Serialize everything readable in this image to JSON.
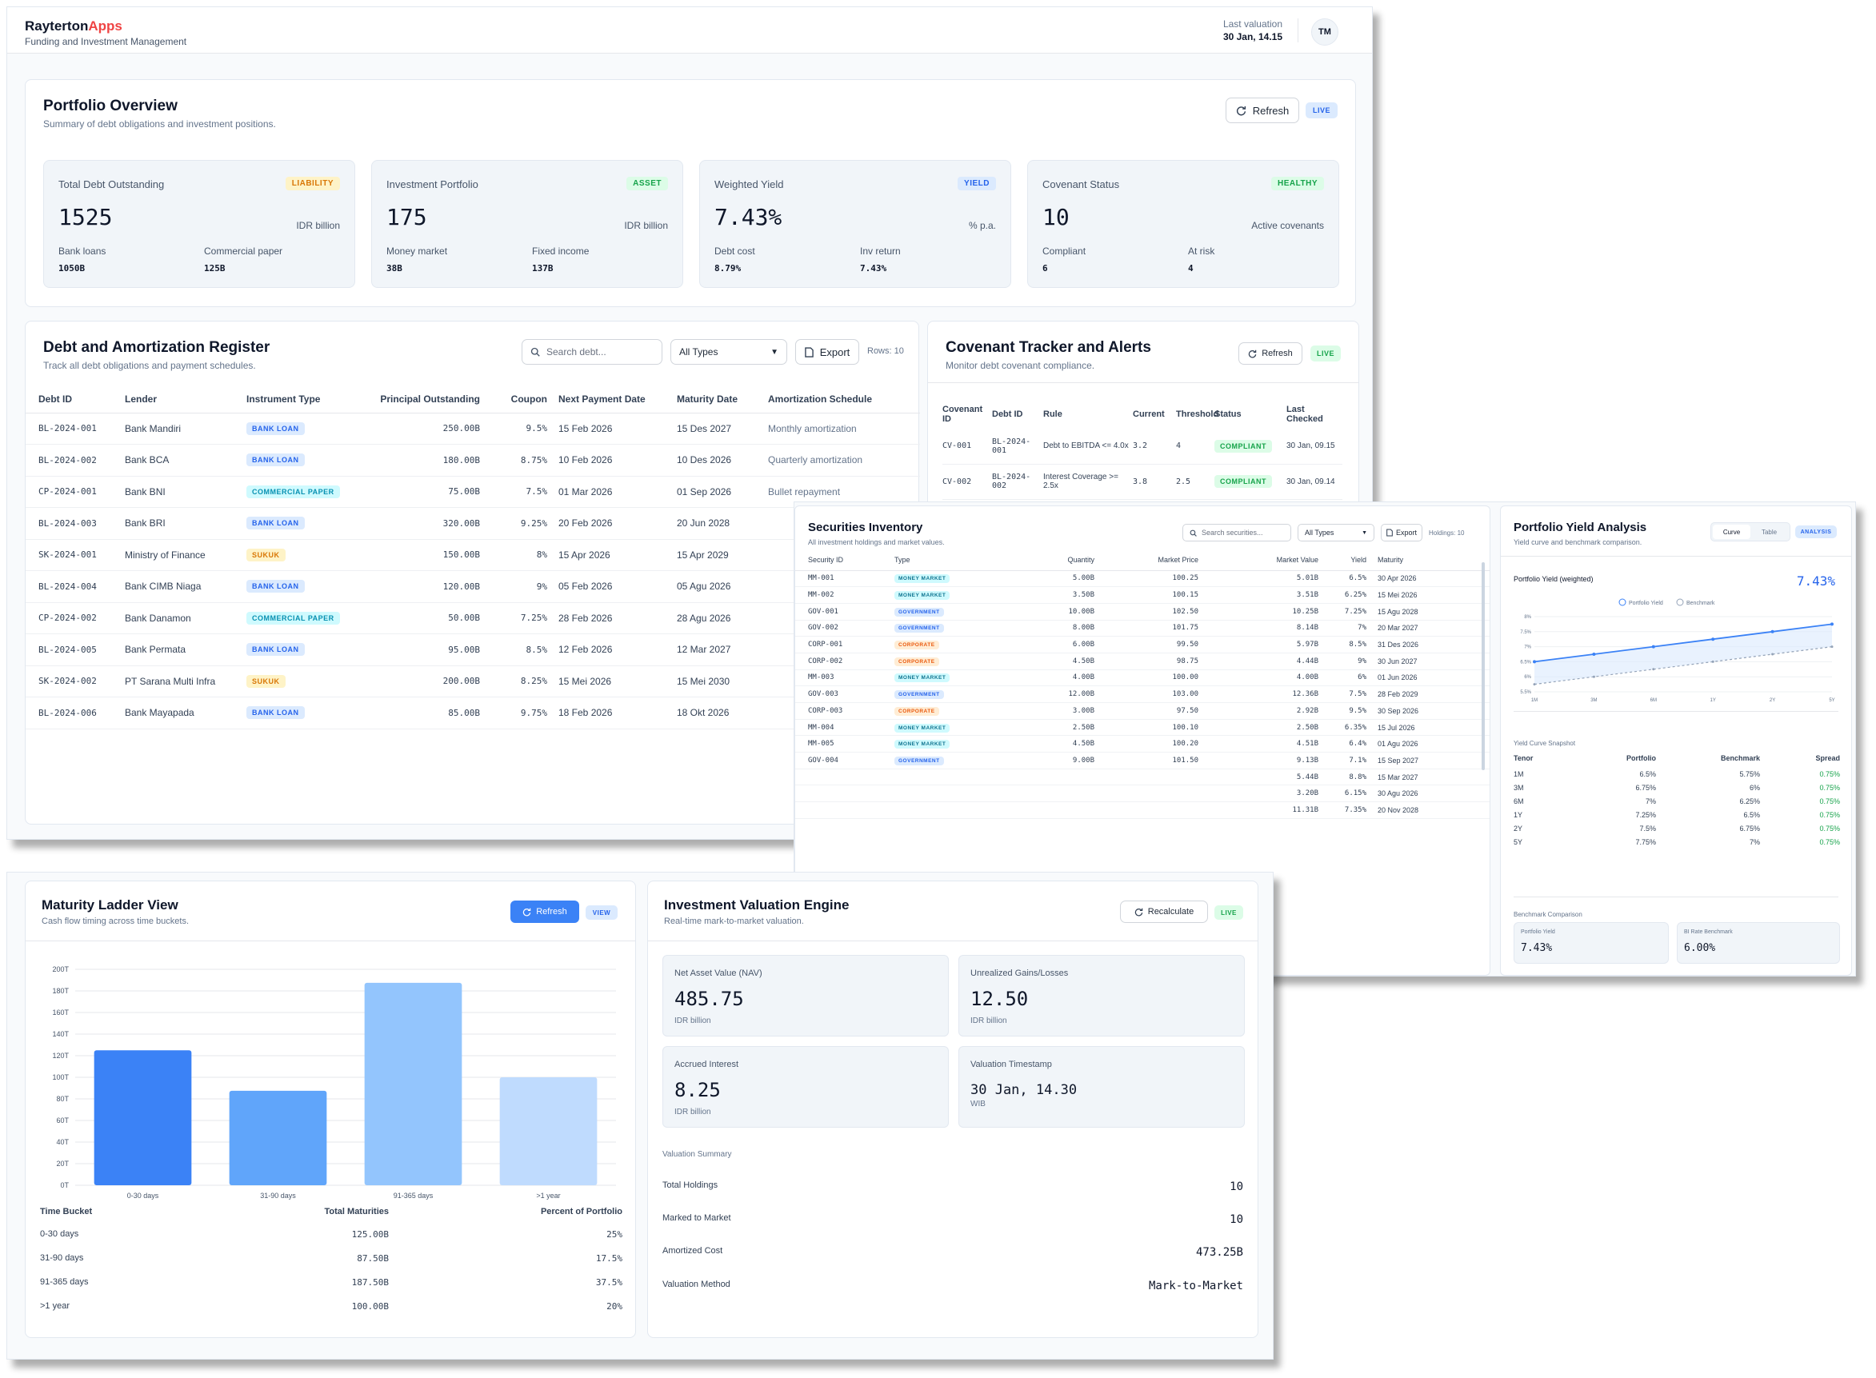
{
  "app": {
    "brand_main": "Rayterton",
    "brand_accent": "Apps",
    "tagline": "Funding and Investment Management",
    "last_valuation_label": "Last valuation",
    "last_valuation_value": "30 Jan, 14.15",
    "avatar": "TM",
    "accent_color": "#ef4444"
  },
  "overview": {
    "title": "Portfolio Overview",
    "subtitle": "Summary of debt obligations and investment positions.",
    "refresh_label": "Refresh",
    "live_label": "LIVE",
    "cards": [
      {
        "label": "Total Debt Outstanding",
        "tag": "LIABILITY",
        "value": "1525",
        "unit": "IDR billion",
        "s1_label": "Bank loans",
        "s1_value": "1050B",
        "s2_label": "Commercial paper",
        "s2_value": "125B"
      },
      {
        "label": "Investment Portfolio",
        "tag": "ASSET",
        "value": "175",
        "unit": "IDR billion",
        "s1_label": "Money market",
        "s1_value": "38B",
        "s2_label": "Fixed income",
        "s2_value": "137B"
      },
      {
        "label": "Weighted Yield",
        "tag": "YIELD",
        "value": "7.43%",
        "unit": "% p.a.",
        "s1_label": "Debt cost",
        "s1_value": "8.79%",
        "s2_label": "Inv return",
        "s2_value": "7.43%"
      },
      {
        "label": "Covenant Status",
        "tag": "HEALTHY",
        "value": "10",
        "unit": "Active covenants",
        "s1_label": "Compliant",
        "s1_value": "6",
        "s2_label": "At risk",
        "s2_value": "4"
      }
    ]
  },
  "debt": {
    "title": "Debt and Amortization Register",
    "subtitle": "Track all debt obligations and payment schedules.",
    "search_placeholder": "Search debt...",
    "filter_value": "All Types",
    "export_label": "Export",
    "rows_label": "Rows: 10",
    "headers": [
      "Debt ID",
      "Lender",
      "Instrument Type",
      "Principal Outstanding",
      "Coupon",
      "Next Payment Date",
      "Maturity Date",
      "Amortization Schedule"
    ],
    "rows": [
      {
        "id": "BL-2024-001",
        "lender": "Bank Mandiri",
        "type": "BANK LOAN",
        "principal": "250.00B",
        "coupon": "9.5%",
        "next": "15 Feb 2026",
        "maturity": "15 Des 2027",
        "schedule": "Monthly amortization"
      },
      {
        "id": "BL-2024-002",
        "lender": "Bank BCA",
        "type": "BANK LOAN",
        "principal": "180.00B",
        "coupon": "8.75%",
        "next": "10 Feb 2026",
        "maturity": "10 Des 2026",
        "schedule": "Quarterly amortization"
      },
      {
        "id": "CP-2024-001",
        "lender": "Bank BNI",
        "type": "COMMERCIAL PAPER",
        "principal": "75.00B",
        "coupon": "7.5%",
        "next": "01 Mar 2026",
        "maturity": "01 Sep 2026",
        "schedule": "Bullet repayment"
      },
      {
        "id": "BL-2024-003",
        "lender": "Bank BRI",
        "type": "BANK LOAN",
        "principal": "320.00B",
        "coupon": "9.25%",
        "next": "20 Feb 2026",
        "maturity": "20 Jun 2028",
        "schedule": ""
      },
      {
        "id": "SK-2024-001",
        "lender": "Ministry of Finance",
        "type": "SUKUK",
        "principal": "150.00B",
        "coupon": "8%",
        "next": "15 Apr 2026",
        "maturity": "15 Apr 2029",
        "schedule": ""
      },
      {
        "id": "BL-2024-004",
        "lender": "Bank CIMB Niaga",
        "type": "BANK LOAN",
        "principal": "120.00B",
        "coupon": "9%",
        "next": "05 Feb 2026",
        "maturity": "05 Agu 2026",
        "schedule": ""
      },
      {
        "id": "CP-2024-002",
        "lender": "Bank Danamon",
        "type": "COMMERCIAL PAPER",
        "principal": "50.00B",
        "coupon": "7.25%",
        "next": "28 Feb 2026",
        "maturity": "28 Agu 2026",
        "schedule": ""
      },
      {
        "id": "BL-2024-005",
        "lender": "Bank Permata",
        "type": "BANK LOAN",
        "principal": "95.00B",
        "coupon": "8.5%",
        "next": "12 Feb 2026",
        "maturity": "12 Mar 2027",
        "schedule": ""
      },
      {
        "id": "SK-2024-002",
        "lender": "PT Sarana Multi Infra",
        "type": "SUKUK",
        "principal": "200.00B",
        "coupon": "8.25%",
        "next": "15 Mei 2026",
        "maturity": "15 Mei 2030",
        "schedule": ""
      },
      {
        "id": "BL-2024-006",
        "lender": "Bank Mayapada",
        "type": "BANK LOAN",
        "principal": "85.00B",
        "coupon": "9.75%",
        "next": "18 Feb 2026",
        "maturity": "18 Okt 2026",
        "schedule": ""
      }
    ]
  },
  "covenant": {
    "title": "Covenant Tracker and Alerts",
    "subtitle": "Monitor debt covenant compliance.",
    "refresh_label": "Refresh",
    "live_label": "LIVE",
    "headers": [
      "Covenant ID",
      "Debt ID",
      "Rule",
      "Current",
      "Threshold",
      "Status",
      "Last Checked"
    ],
    "rows": [
      {
        "id": "CV-001",
        "debt": "BL-2024-001",
        "rule": "Debt to EBITDA <= 4.0x",
        "current": "3.2",
        "threshold": "4",
        "status": "COMPLIANT",
        "checked": "30 Jan, 09.15"
      },
      {
        "id": "CV-002",
        "debt": "BL-2024-002",
        "rule": "Interest Coverage >= 2.5x",
        "current": "3.8",
        "threshold": "2.5",
        "status": "COMPLIANT",
        "checked": "30 Jan, 09.14"
      }
    ]
  },
  "securities": {
    "title": "Securities Inventory",
    "subtitle": "All investment holdings and market values.",
    "search_placeholder": "Search securities...",
    "filter_value": "All Types",
    "export_label": "Export",
    "holdings_label": "Holdings: 10",
    "headers": [
      "Security ID",
      "Type",
      "Quantity",
      "Market Price",
      "Market Value",
      "Yield",
      "Maturity"
    ],
    "rows": [
      {
        "id": "MM-001",
        "type": "MONEY MARKET",
        "qty": "5.00B",
        "price": "100.25",
        "value": "5.01B",
        "yield": "6.5%",
        "maturity": "30 Apr 2026"
      },
      {
        "id": "MM-002",
        "type": "MONEY MARKET",
        "qty": "3.50B",
        "price": "100.15",
        "value": "3.51B",
        "yield": "6.25%",
        "maturity": "15 Mei 2026"
      },
      {
        "id": "GOV-001",
        "type": "GOVERNMENT",
        "qty": "10.00B",
        "price": "102.50",
        "value": "10.25B",
        "yield": "7.25%",
        "maturity": "15 Agu 2028"
      },
      {
        "id": "GOV-002",
        "type": "GOVERNMENT",
        "qty": "8.00B",
        "price": "101.75",
        "value": "8.14B",
        "yield": "7%",
        "maturity": "20 Mar 2027"
      },
      {
        "id": "CORP-001",
        "type": "CORPORATE",
        "qty": "6.00B",
        "price": "99.50",
        "value": "5.97B",
        "yield": "8.5%",
        "maturity": "31 Des 2026"
      },
      {
        "id": "CORP-002",
        "type": "CORPORATE",
        "qty": "4.50B",
        "price": "98.75",
        "value": "4.44B",
        "yield": "9%",
        "maturity": "30 Jun 2027"
      },
      {
        "id": "MM-003",
        "type": "MONEY MARKET",
        "qty": "4.00B",
        "price": "100.00",
        "value": "4.00B",
        "yield": "6%",
        "maturity": "01 Jun 2026"
      },
      {
        "id": "GOV-003",
        "type": "GOVERNMENT",
        "qty": "12.00B",
        "price": "103.00",
        "value": "12.36B",
        "yield": "7.5%",
        "maturity": "28 Feb 2029"
      },
      {
        "id": "CORP-003",
        "type": "CORPORATE",
        "qty": "3.00B",
        "price": "97.50",
        "value": "2.92B",
        "yield": "9.5%",
        "maturity": "30 Sep 2026"
      },
      {
        "id": "MM-004",
        "type": "MONEY MARKET",
        "qty": "2.50B",
        "price": "100.10",
        "value": "2.50B",
        "yield": "6.35%",
        "maturity": "15 Jul 2026"
      },
      {
        "id": "MM-005",
        "type": "MONEY MARKET",
        "qty": "4.50B",
        "price": "100.20",
        "value": "4.51B",
        "yield": "6.4%",
        "maturity": "01 Agu 2026"
      },
      {
        "id": "GOV-004",
        "type": "GOVERNMENT",
        "qty": "9.00B",
        "price": "101.50",
        "value": "9.13B",
        "yield": "7.1%",
        "maturity": "15 Sep 2027"
      },
      {
        "id": "",
        "type": "",
        "qty": "",
        "price": "",
        "value": "5.44B",
        "yield": "8.8%",
        "maturity": "15 Mar 2027"
      },
      {
        "id": "",
        "type": "",
        "qty": "",
        "price": "",
        "value": "3.20B",
        "yield": "6.15%",
        "maturity": "30 Agu 2026"
      },
      {
        "id": "",
        "type": "",
        "qty": "",
        "price": "",
        "value": "11.31B",
        "yield": "7.35%",
        "maturity": "20 Nov 2028"
      }
    ]
  },
  "yield": {
    "title": "Portfolio Yield Analysis",
    "subtitle": "Yield curve and benchmark comparison.",
    "tab_curve": "Curve",
    "tab_table": "Table",
    "analysis_label": "ANALYSIS",
    "chart_title": "Portfolio Yield (weighted)",
    "headline": "7.43%",
    "legend_portfolio": "Portfolio Yield",
    "legend_benchmark": "Benchmark",
    "snapshot_title": "Yield Curve Snapshot",
    "headers": [
      "Tenor",
      "Portfolio",
      "Benchmark",
      "Spread"
    ],
    "rows": [
      {
        "tenor": "1M",
        "portfolio": "6.5%",
        "benchmark": "5.75%",
        "spread": "0.75%"
      },
      {
        "tenor": "3M",
        "portfolio": "6.75%",
        "benchmark": "6%",
        "spread": "0.75%"
      },
      {
        "tenor": "6M",
        "portfolio": "7%",
        "benchmark": "6.25%",
        "spread": "0.75%"
      },
      {
        "tenor": "1Y",
        "portfolio": "7.25%",
        "benchmark": "6.5%",
        "spread": "0.75%"
      },
      {
        "tenor": "2Y",
        "portfolio": "7.5%",
        "benchmark": "6.75%",
        "spread": "0.75%"
      },
      {
        "tenor": "5Y",
        "portfolio": "7.75%",
        "benchmark": "7%",
        "spread": "0.75%"
      }
    ],
    "bench_title": "Benchmark Comparison",
    "bench_portfolio_label": "Portfolio Yield",
    "bench_portfolio_value": "7.43%",
    "bench_bi_label": "BI Rate Benchmark",
    "bench_bi_value": "6.00%",
    "chart_data": {
      "type": "line",
      "x": [
        "1M",
        "3M",
        "6M",
        "1Y",
        "2Y",
        "5Y"
      ],
      "y_ticks": [
        "8%",
        "7.5%",
        "7%",
        "6.5%",
        "6%",
        "5.5%"
      ],
      "ylim": [
        5.5,
        8
      ],
      "series": [
        {
          "name": "Portfolio Yield",
          "values": [
            6.5,
            6.75,
            7,
            7.25,
            7.5,
            7.75
          ],
          "color": "#3b82f6"
        },
        {
          "name": "Benchmark",
          "values": [
            5.75,
            6,
            6.25,
            6.5,
            6.75,
            7
          ],
          "color": "#94a3b8"
        }
      ]
    }
  },
  "maturity": {
    "title": "Maturity Ladder View",
    "subtitle": "Cash flow timing across time buckets.",
    "refresh_label": "Refresh",
    "view_label": "VIEW",
    "headers": [
      "Time Bucket",
      "Total Maturities",
      "Percent of Portfolio"
    ],
    "rows": [
      {
        "bucket": "0-30 days",
        "total": "125.00B",
        "pct": "25%"
      },
      {
        "bucket": "31-90 days",
        "total": "87.50B",
        "pct": "17.5%"
      },
      {
        "bucket": "91-365 days",
        "total": "187.50B",
        "pct": "37.5%"
      },
      {
        "bucket": ">1 year",
        "total": "100.00B",
        "pct": "20%"
      }
    ],
    "chart_data": {
      "type": "bar",
      "categories": [
        "0-30 days",
        "31-90 days",
        "91-365 days",
        ">1 year"
      ],
      "values": [
        125,
        87.5,
        187.5,
        100
      ],
      "y_ticks": [
        "200T",
        "180T",
        "160T",
        "140T",
        "120T",
        "100T",
        "80T",
        "60T",
        "40T",
        "20T",
        "0T"
      ],
      "ylim": [
        0,
        200
      ],
      "colors": [
        "#3b82f6",
        "#60a5fa",
        "#93c5fd",
        "#bfdbfe"
      ]
    }
  },
  "valuation": {
    "title": "Investment Valuation Engine",
    "subtitle": "Real-time mark-to-market valuation.",
    "recalc_label": "Recalculate",
    "live_label": "LIVE",
    "cards": [
      {
        "label": "Net Asset Value (NAV)",
        "value": "485.75",
        "unit": "IDR billion"
      },
      {
        "label": "Unrealized Gains/Losses",
        "value": "12.50",
        "unit": "IDR billion"
      },
      {
        "label": "Accrued Interest",
        "value": "8.25",
        "unit": "IDR billion"
      },
      {
        "label": "Valuation Timestamp",
        "value": "30 Jan, 14.30",
        "unit": "WIB"
      }
    ],
    "summary_title": "Valuation Summary",
    "summary": [
      {
        "label": "Total Holdings",
        "value": "10"
      },
      {
        "label": "Marked to Market",
        "value": "10"
      },
      {
        "label": "Amortized Cost",
        "value": "473.25B"
      },
      {
        "label": "Valuation Method",
        "value": "Mark-to-Market"
      }
    ]
  }
}
